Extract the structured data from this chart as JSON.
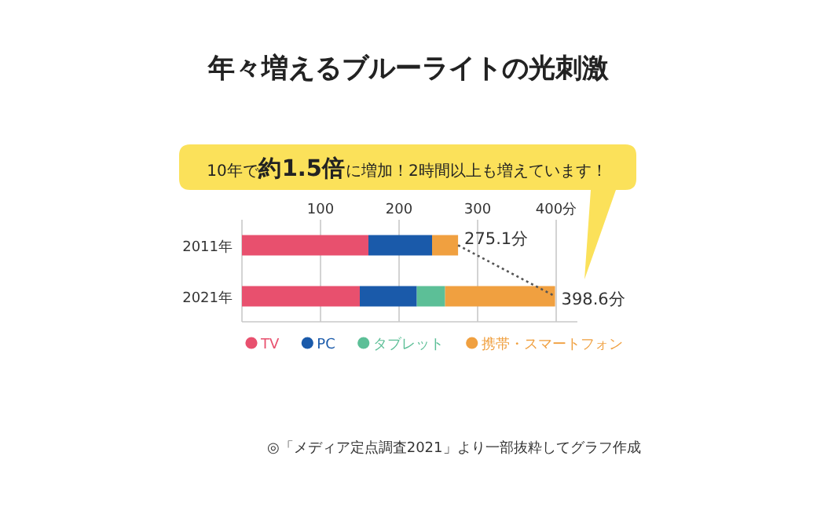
{
  "chart_data": {
    "type": "bar",
    "orientation": "horizontal",
    "stacked": true,
    "title": "年々増えるブルーライトの光刺激",
    "categories": [
      "2011年",
      "2021年"
    ],
    "series": [
      {
        "name": "TV",
        "color": "#e8506e",
        "values": [
          161,
          150
        ]
      },
      {
        "name": "PC",
        "color": "#1a5aaa",
        "values": [
          81,
          72.6
        ]
      },
      {
        "name": "タブレット",
        "color": "#5cbf97",
        "values": [
          null,
          36
        ]
      },
      {
        "name": "携帯・スマートフォン",
        "color": "#f0a040",
        "values": [
          33.1,
          140
        ]
      },
      {
        "type": "line",
        "line_style": "dotted",
        "color": "#555555",
        "values": [
          275.1,
          398.6
        ]
      }
    ],
    "totals": [
      "275.1分",
      "398.6分"
    ],
    "xlim": [
      0,
      427
    ],
    "xticks": [
      {
        "value": 0,
        "label": null
      },
      100,
      200,
      300,
      {
        "value": 400,
        "label": "400分"
      }
    ],
    "grid": "x",
    "legend": "bottom",
    "annotations": [
      "10年で**約1.5倍**に増加！2時間以上も増えています！",
      "◎「メディア定点調査2021」より一部抜粋してグラフ作成"
    ]
  }
}
